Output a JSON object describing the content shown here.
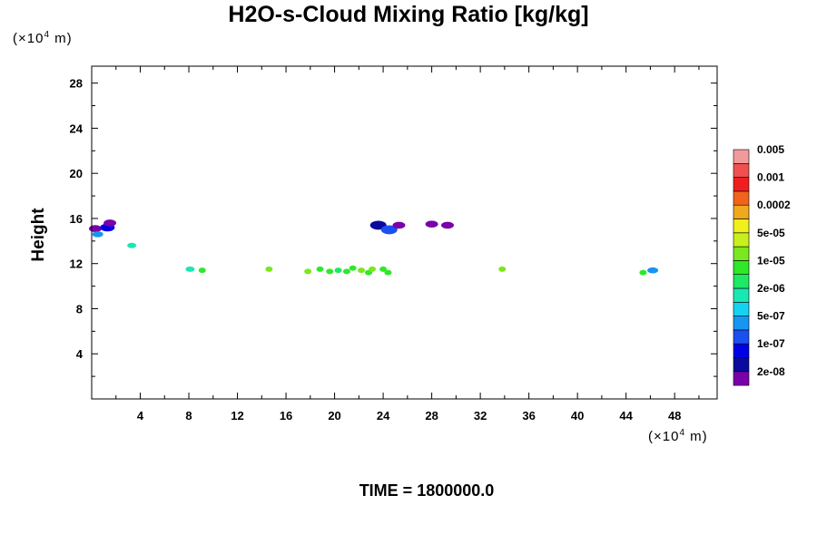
{
  "chart_data": {
    "type": "heatmap",
    "title": "H2O-s-Cloud Mixing Ratio [kg/kg]",
    "xlabel": "",
    "ylabel": "Height",
    "x_unit": "(×10⁴ m)",
    "y_unit": "(×10⁴ m)",
    "xlim": [
      0,
      51.5
    ],
    "ylim": [
      0,
      29.5
    ],
    "x_ticks": [
      4,
      8,
      12,
      16,
      20,
      24,
      28,
      32,
      36,
      40,
      44,
      48
    ],
    "y_ticks": [
      4,
      8,
      12,
      16,
      20,
      24,
      28
    ],
    "grid": false,
    "colorbar": {
      "colors": [
        "#7a00a8",
        "#0a0a9e",
        "#0000e6",
        "#1a50f0",
        "#1696f0",
        "#14d2f0",
        "#18e8b4",
        "#1ee864",
        "#2ee82a",
        "#7ae81c",
        "#c8f01c",
        "#f0f01c",
        "#f0a81c",
        "#f0641c",
        "#f01e1e",
        "#f05050",
        "#f09a9a"
      ],
      "labels": [
        "2e-08",
        "1e-07",
        "5e-07",
        "2e-06",
        "1e-05",
        "5e-05",
        "0.0002",
        "0.001",
        "0.005"
      ]
    },
    "regions": [
      {
        "x": 0.3,
        "y": 15.1,
        "color_level": 0
      },
      {
        "x": 0.5,
        "y": 14.6,
        "color_level": 4
      },
      {
        "x": 1.3,
        "y": 15.2,
        "color_level": 2
      },
      {
        "x": 1.5,
        "y": 15.6,
        "color_level": 0
      },
      {
        "x": 3.3,
        "y": 13.6,
        "color_level": 6
      },
      {
        "x": 8.1,
        "y": 11.5,
        "color_level": 6
      },
      {
        "x": 9.1,
        "y": 11.4,
        "color_level": 8
      },
      {
        "x": 14.6,
        "y": 11.5,
        "color_level": 9
      },
      {
        "x": 17.8,
        "y": 11.3,
        "color_level": 9
      },
      {
        "x": 18.8,
        "y": 11.5,
        "color_level": 8
      },
      {
        "x": 19.6,
        "y": 11.3,
        "color_level": 8
      },
      {
        "x": 20.3,
        "y": 11.4,
        "color_level": 7
      },
      {
        "x": 21.0,
        "y": 11.3,
        "color_level": 8
      },
      {
        "x": 21.5,
        "y": 11.6,
        "color_level": 8
      },
      {
        "x": 22.2,
        "y": 11.4,
        "color_level": 9
      },
      {
        "x": 22.8,
        "y": 11.2,
        "color_level": 8
      },
      {
        "x": 23.1,
        "y": 11.5,
        "color_level": 9
      },
      {
        "x": 24.0,
        "y": 11.5,
        "color_level": 8
      },
      {
        "x": 24.4,
        "y": 11.2,
        "color_level": 8
      },
      {
        "x": 23.6,
        "y": 15.4,
        "color_level": 1
      },
      {
        "x": 24.5,
        "y": 15.0,
        "color_level": 3
      },
      {
        "x": 25.3,
        "y": 15.4,
        "color_level": 0
      },
      {
        "x": 28.0,
        "y": 15.5,
        "color_level": 0
      },
      {
        "x": 29.3,
        "y": 15.4,
        "color_level": 0
      },
      {
        "x": 33.8,
        "y": 11.5,
        "color_level": 9
      },
      {
        "x": 45.4,
        "y": 11.2,
        "color_level": 8
      },
      {
        "x": 46.2,
        "y": 11.4,
        "color_level": 4
      }
    ]
  },
  "time_label": "TIME = 1800000.0"
}
